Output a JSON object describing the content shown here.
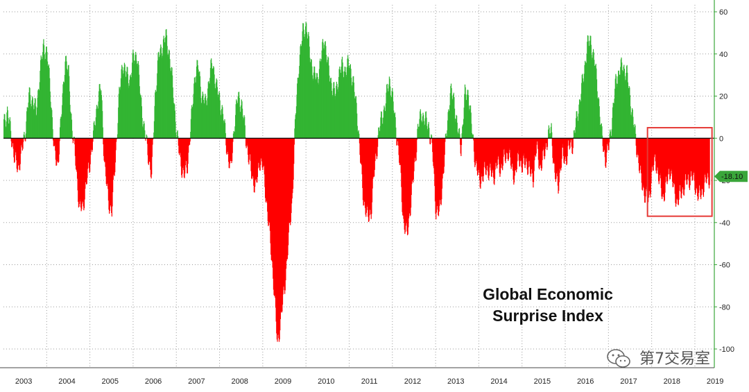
{
  "colors": {
    "positive": "#33b533",
    "negative": "#ff0000",
    "axis": "#3aa63a",
    "grid": "#9a9a9a",
    "highlight_box": "#e53935",
    "last_value_bg": "#3aa63a"
  },
  "watermark": {
    "text": "第7交易室",
    "icon": "wechat-icon"
  },
  "chart_data": {
    "type": "area",
    "title_lines": [
      "Global Economic",
      "Surprise Index"
    ],
    "xlabel": "",
    "ylabel": "",
    "ylim": [
      -100,
      60
    ],
    "yticks": [
      60,
      40,
      20,
      0,
      -20,
      -40,
      -60,
      -80,
      -100
    ],
    "xlim": [
      2003.0,
      2019.45
    ],
    "x_tick_labels": [
      "2003",
      "2004",
      "2005",
      "2006",
      "2007",
      "2008",
      "2009",
      "2010",
      "2011",
      "2012",
      "2013",
      "2014",
      "2015",
      "2016",
      "2017",
      "2018",
      "2019"
    ],
    "grid": true,
    "last_value": "-18.10",
    "highlight_range": {
      "x": [
        2018.0,
        2019.3
      ],
      "y": [
        -37,
        5
      ]
    },
    "series": [
      {
        "x": [
          2003.0,
          2003.08,
          2003.17,
          2003.25,
          2003.33,
          2003.42,
          2003.5,
          2003.58,
          2003.67,
          2003.75,
          2003.83,
          2003.92,
          2004.0,
          2004.08,
          2004.17,
          2004.25,
          2004.33,
          2004.42,
          2004.5,
          2004.58,
          2004.67,
          2004.75,
          2004.83,
          2004.92,
          2005.0,
          2005.08,
          2005.17,
          2005.25,
          2005.33,
          2005.42,
          2005.5,
          2005.58,
          2005.67,
          2005.75,
          2005.83,
          2005.92,
          2006.0,
          2006.08,
          2006.17,
          2006.25,
          2006.33,
          2006.42,
          2006.5,
          2006.58,
          2006.67,
          2006.75,
          2006.83,
          2006.92,
          2007.0,
          2007.08,
          2007.17,
          2007.25,
          2007.33,
          2007.42,
          2007.5,
          2007.58,
          2007.67,
          2007.75,
          2007.83,
          2007.92,
          2008.0,
          2008.08,
          2008.17,
          2008.25,
          2008.33,
          2008.42,
          2008.5,
          2008.58,
          2008.67,
          2008.75,
          2008.83,
          2008.92,
          2009.0,
          2009.08,
          2009.17,
          2009.25,
          2009.33,
          2009.42,
          2009.5,
          2009.58,
          2009.67,
          2009.75,
          2009.83,
          2009.92,
          2010.0,
          2010.08,
          2010.17,
          2010.25,
          2010.33,
          2010.42,
          2010.5,
          2010.58,
          2010.67,
          2010.75,
          2010.83,
          2010.92,
          2011.0,
          2011.08,
          2011.17,
          2011.25,
          2011.33,
          2011.42,
          2011.5,
          2011.58,
          2011.67,
          2011.75,
          2011.83,
          2011.92,
          2012.0,
          2012.08,
          2012.17,
          2012.25,
          2012.33,
          2012.42,
          2012.5,
          2012.58,
          2012.67,
          2012.75,
          2012.83,
          2012.92,
          2013.0,
          2013.08,
          2013.17,
          2013.25,
          2013.33,
          2013.42,
          2013.5,
          2013.58,
          2013.67,
          2013.75,
          2013.83,
          2013.92,
          2014.0,
          2014.08,
          2014.17,
          2014.25,
          2014.33,
          2014.42,
          2014.5,
          2014.58,
          2014.67,
          2014.75,
          2014.83,
          2014.92,
          2015.0,
          2015.08,
          2015.17,
          2015.25,
          2015.33,
          2015.42,
          2015.5,
          2015.58,
          2015.67,
          2015.75,
          2015.83,
          2015.92,
          2016.0,
          2016.08,
          2016.17,
          2016.25,
          2016.33,
          2016.42,
          2016.5,
          2016.58,
          2016.67,
          2016.75,
          2016.83,
          2016.92,
          2017.0,
          2017.08,
          2017.17,
          2017.25,
          2017.33,
          2017.42,
          2017.5,
          2017.58,
          2017.67,
          2017.75,
          2017.83,
          2017.92,
          2018.0,
          2018.08,
          2018.17,
          2018.25,
          2018.33,
          2018.42,
          2018.5,
          2018.58,
          2018.67,
          2018.75,
          2018.83,
          2018.92,
          2019.0,
          2019.08,
          2019.17,
          2019.25,
          2019.33
        ],
        "values": [
          8,
          12,
          2,
          -10,
          -14,
          -6,
          4,
          20,
          18,
          12,
          30,
          44,
          40,
          22,
          -8,
          -12,
          10,
          38,
          30,
          4,
          -12,
          -34,
          -32,
          -20,
          -10,
          2,
          18,
          24,
          -12,
          -30,
          -34,
          -10,
          20,
          36,
          30,
          28,
          38,
          40,
          18,
          4,
          -6,
          -18,
          20,
          38,
          44,
          48,
          40,
          22,
          2,
          -10,
          -18,
          -12,
          6,
          30,
          34,
          20,
          16,
          28,
          36,
          24,
          18,
          10,
          -6,
          -16,
          6,
          20,
          16,
          4,
          -10,
          -18,
          -24,
          -10,
          -14,
          -30,
          -50,
          -70,
          -98,
          -84,
          -70,
          -50,
          -30,
          10,
          36,
          50,
          54,
          40,
          30,
          28,
          36,
          48,
          34,
          26,
          20,
          30,
          34,
          32,
          36,
          26,
          14,
          -10,
          -30,
          -38,
          -34,
          -14,
          2,
          10,
          16,
          28,
          18,
          4,
          -14,
          -40,
          -46,
          -30,
          -14,
          4,
          12,
          8,
          6,
          -6,
          -34,
          -36,
          -16,
          4,
          22,
          18,
          4,
          -4,
          20,
          22,
          4,
          -12,
          -20,
          -18,
          -14,
          -16,
          -18,
          -12,
          -14,
          -10,
          -6,
          -14,
          -18,
          -8,
          -14,
          -10,
          -16,
          -18,
          -4,
          -14,
          -8,
          0,
          4,
          -18,
          -22,
          -8,
          -10,
          -4,
          -2,
          8,
          18,
          30,
          44,
          46,
          36,
          22,
          2,
          -10,
          -4,
          10,
          28,
          32,
          34,
          30,
          18,
          6,
          -8,
          -20,
          -26,
          -30,
          -16,
          -10,
          -20,
          -28,
          -22,
          -14,
          -24,
          -30,
          -26,
          -22,
          -20,
          -18,
          -22,
          -28,
          -24,
          -20,
          -18.1
        ]
      }
    ]
  }
}
